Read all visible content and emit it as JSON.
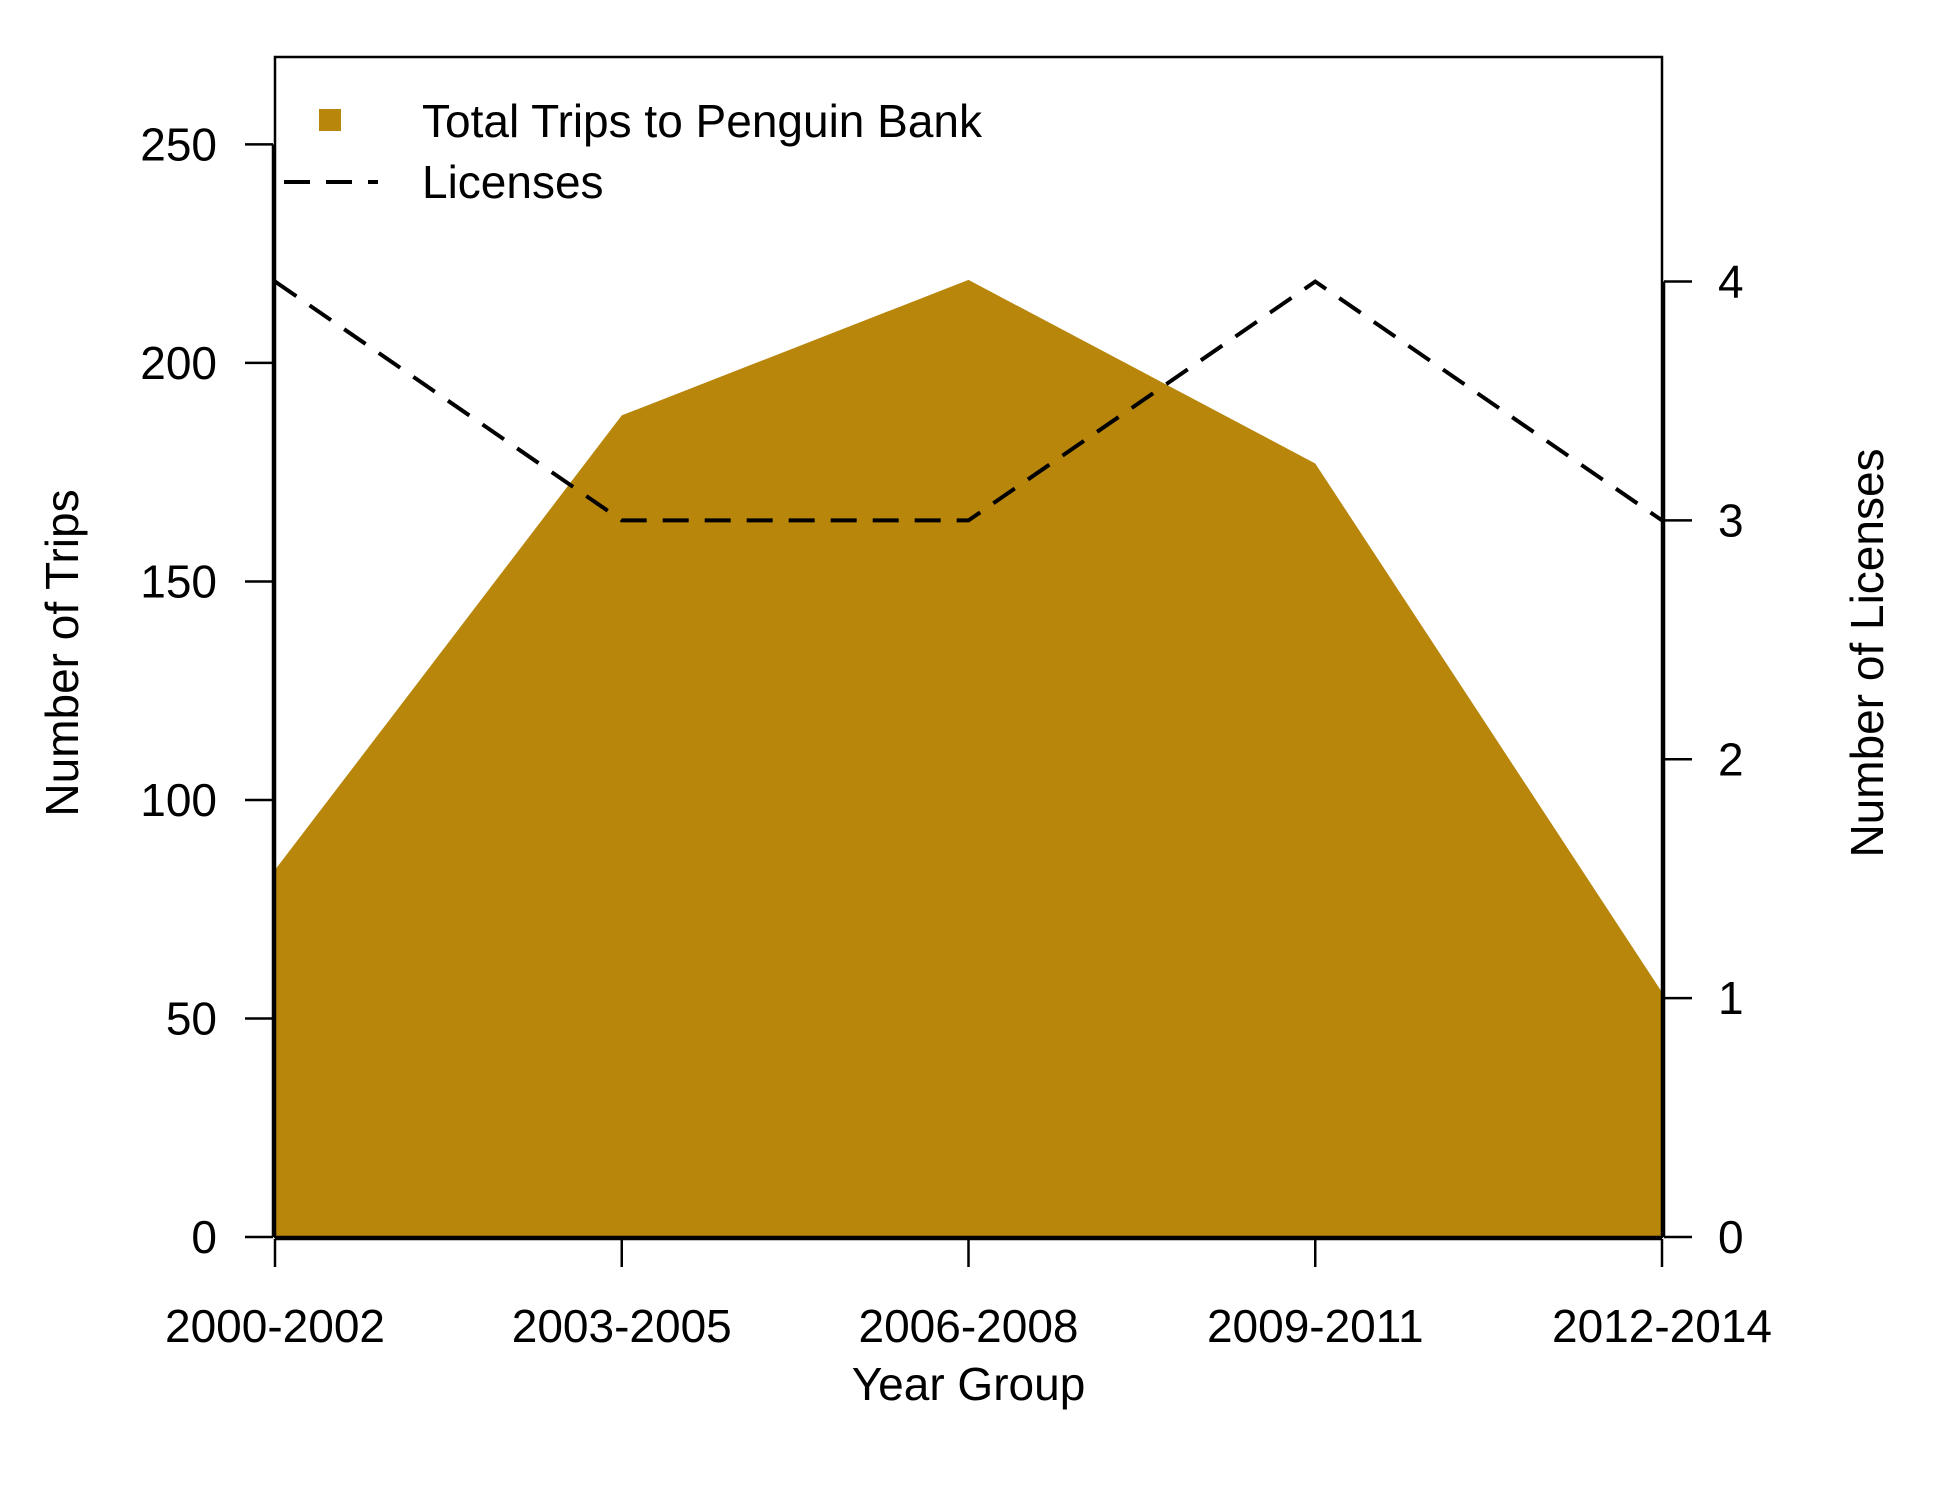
{
  "chart_data": {
    "type": "area",
    "xlabel": "Year Group",
    "ylabel": "Number of Trips",
    "y2label": "Number of Licenses",
    "categories": [
      "2000-2002",
      "2003-2005",
      "2006-2008",
      "2009-2011",
      "2012-2014"
    ],
    "ylim": [
      0,
      270
    ],
    "y2lim": [
      0,
      4.94
    ],
    "yticks": [
      0,
      50,
      100,
      150,
      200,
      250
    ],
    "y2ticks": [
      0,
      1,
      2,
      3,
      4
    ],
    "series": [
      {
        "name": "Total Trips to Penguin Bank",
        "type": "area",
        "axis": "left",
        "color": "#b8860b",
        "values": [
          84,
          188,
          219,
          177,
          56
        ]
      },
      {
        "name": "Licenses",
        "type": "line",
        "axis": "right",
        "color": "#000000",
        "line_style": "dashed",
        "values": [
          4,
          3,
          3,
          4,
          3
        ]
      }
    ],
    "legend": "top-left",
    "grid": false
  }
}
